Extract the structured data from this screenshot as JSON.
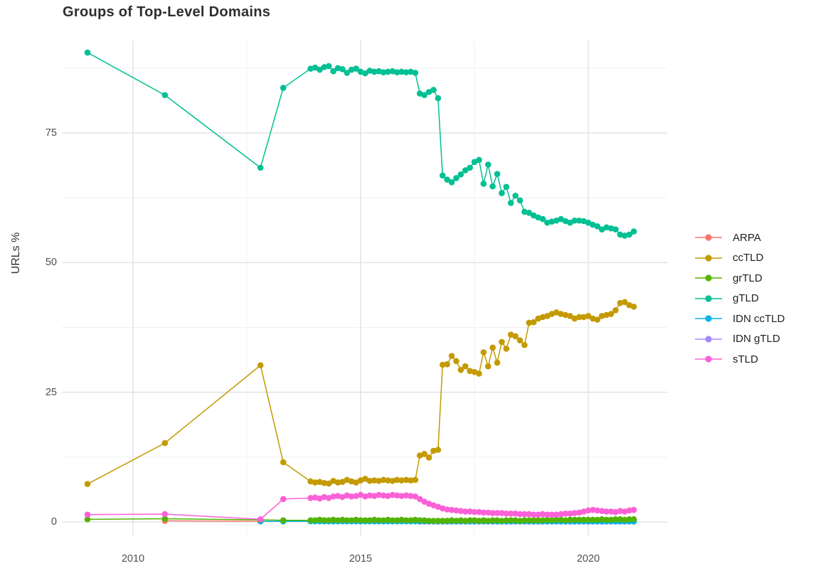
{
  "chart_data": {
    "type": "line",
    "title": "Groups of Top-Level Domains",
    "xlabel": "",
    "ylabel": "URLs %",
    "x_tick_labels": [
      "2010",
      "2015",
      "2020"
    ],
    "x_ticks": [
      2010,
      2015,
      2020
    ],
    "x_minor_ticks": [
      2012.5,
      2017.5
    ],
    "y_tick_labels": [
      "0",
      "25",
      "50",
      "75"
    ],
    "y_ticks": [
      0,
      25,
      50,
      75
    ],
    "y_minor_ticks": [
      12.5,
      37.5,
      62.5,
      87.5
    ],
    "x_range": [
      2008.4,
      2021.8
    ],
    "y_range": [
      -2.9,
      92.5
    ],
    "grid": "major+minor",
    "legend_position": "right",
    "series": [
      {
        "name": "ARPA",
        "color": "#F8766D",
        "x": [
          2010.7,
          2012.8
        ],
        "y": [
          0.2,
          0.1
        ]
      },
      {
        "name": "ccTLD",
        "color": "#C49A00",
        "x": [
          2009,
          2010.7,
          2012.8,
          2013.3,
          2013.9,
          2014.0,
          2014.1,
          2014.2,
          2014.3,
          2014.4,
          2014.5,
          2014.6,
          2014.7,
          2014.8,
          2014.9,
          2015.0,
          2015.1,
          2015.2,
          2015.3,
          2015.4,
          2015.5,
          2015.6,
          2015.7,
          2015.8,
          2015.9,
          2016.0,
          2016.1,
          2016.2,
          2016.3,
          2016.4,
          2016.5,
          2016.6,
          2016.7,
          2016.8,
          2016.9,
          2017.0,
          2017.1,
          2017.2,
          2017.3,
          2017.4,
          2017.5,
          2017.6,
          2017.7,
          2017.8,
          2017.9,
          2018.0,
          2018.1,
          2018.2,
          2018.3,
          2018.4,
          2018.5,
          2018.6,
          2018.7,
          2018.8,
          2018.9,
          2019.0,
          2019.1,
          2019.2,
          2019.3,
          2019.4,
          2019.5,
          2019.6,
          2019.7,
          2019.8,
          2019.9,
          2020.0,
          2020.1,
          2020.2,
          2020.3,
          2020.4,
          2020.5,
          2020.6,
          2020.7,
          2020.8,
          2020.9,
          2021.0
        ],
        "y": [
          7.3,
          15.2,
          30.2,
          11.5,
          7.8,
          7.6,
          7.7,
          7.5,
          7.4,
          7.9,
          7.6,
          7.7,
          8.1,
          7.8,
          7.6,
          8.0,
          8.3,
          7.9,
          8.0,
          7.9,
          8.1,
          8.0,
          7.9,
          8.1,
          8.0,
          8.1,
          8.0,
          8.1,
          12.8,
          13.1,
          12.4,
          13.7,
          13.9,
          30.3,
          30.4,
          32.0,
          31.0,
          29.3,
          30.0,
          29.1,
          28.9,
          28.6,
          32.7,
          30.0,
          33.6,
          30.7,
          34.7,
          33.4,
          36.1,
          35.8,
          35.0,
          34.1,
          38.4,
          38.5,
          39.2,
          39.5,
          39.7,
          40.1,
          40.4,
          40.1,
          39.9,
          39.7,
          39.2,
          39.5,
          39.5,
          39.7,
          39.2,
          39.0,
          39.7,
          39.9,
          40.1,
          40.8,
          42.2,
          42.4,
          41.8,
          41.5
        ]
      },
      {
        "name": "grTLD",
        "color": "#53B400",
        "x": [
          2009,
          2010.7,
          2012.8,
          2013.3,
          2013.9,
          2014.0,
          2014.1,
          2014.2,
          2014.3,
          2014.4,
          2014.5,
          2014.6,
          2014.7,
          2014.8,
          2014.9,
          2015.0,
          2015.1,
          2015.2,
          2015.3,
          2015.4,
          2015.5,
          2015.6,
          2015.7,
          2015.8,
          2015.9,
          2016.0,
          2016.1,
          2016.2,
          2016.3,
          2016.4,
          2016.5,
          2016.6,
          2016.7,
          2016.8,
          2016.9,
          2017.0,
          2017.1,
          2017.2,
          2017.3,
          2017.4,
          2017.5,
          2017.6,
          2017.7,
          2017.8,
          2017.9,
          2018.0,
          2018.1,
          2018.2,
          2018.3,
          2018.4,
          2018.5,
          2018.6,
          2018.7,
          2018.8,
          2018.9,
          2019.0,
          2019.1,
          2019.2,
          2019.3,
          2019.4,
          2019.5,
          2019.6,
          2019.7,
          2019.8,
          2019.9,
          2020.0,
          2020.1,
          2020.2,
          2020.3,
          2020.4,
          2020.5,
          2020.6,
          2020.7,
          2020.8,
          2020.9,
          2021.0
        ],
        "y": [
          0.5,
          0.6,
          0.4,
          0.3,
          0.3,
          0.3,
          0.4,
          0.3,
          0.3,
          0.4,
          0.3,
          0.4,
          0.3,
          0.3,
          0.4,
          0.3,
          0.3,
          0.3,
          0.4,
          0.3,
          0.3,
          0.4,
          0.3,
          0.3,
          0.4,
          0.3,
          0.3,
          0.4,
          0.3,
          0.3,
          0.2,
          0.2,
          0.2,
          0.2,
          0.2,
          0.3,
          0.2,
          0.3,
          0.2,
          0.3,
          0.3,
          0.2,
          0.3,
          0.2,
          0.3,
          0.3,
          0.2,
          0.3,
          0.3,
          0.3,
          0.2,
          0.3,
          0.3,
          0.3,
          0.3,
          0.3,
          0.4,
          0.3,
          0.4,
          0.4,
          0.3,
          0.4,
          0.4,
          0.4,
          0.4,
          0.4,
          0.4,
          0.4,
          0.5,
          0.4,
          0.4,
          0.5,
          0.5,
          0.4,
          0.5,
          0.5
        ]
      },
      {
        "name": "gTLD",
        "color": "#00C094",
        "x": [
          2009,
          2010.7,
          2012.8,
          2013.3,
          2013.9,
          2014.0,
          2014.1,
          2014.2,
          2014.3,
          2014.4,
          2014.5,
          2014.6,
          2014.7,
          2014.8,
          2014.9,
          2015.0,
          2015.1,
          2015.2,
          2015.3,
          2015.4,
          2015.5,
          2015.6,
          2015.7,
          2015.8,
          2015.9,
          2016.0,
          2016.1,
          2016.2,
          2016.3,
          2016.4,
          2016.5,
          2016.6,
          2016.7,
          2016.8,
          2016.9,
          2017.0,
          2017.1,
          2017.2,
          2017.3,
          2017.4,
          2017.5,
          2017.6,
          2017.7,
          2017.8,
          2017.9,
          2018.0,
          2018.1,
          2018.2,
          2018.3,
          2018.4,
          2018.5,
          2018.6,
          2018.7,
          2018.8,
          2018.9,
          2019.0,
          2019.1,
          2019.2,
          2019.3,
          2019.4,
          2019.5,
          2019.6,
          2019.7,
          2019.8,
          2019.9,
          2020.0,
          2020.1,
          2020.2,
          2020.3,
          2020.4,
          2020.5,
          2020.6,
          2020.7,
          2020.8,
          2020.9,
          2021.0
        ],
        "y": [
          90.5,
          82.3,
          68.3,
          83.7,
          87.4,
          87.6,
          87.2,
          87.7,
          87.9,
          86.9,
          87.5,
          87.3,
          86.6,
          87.2,
          87.4,
          86.8,
          86.5,
          87.0,
          86.8,
          86.9,
          86.7,
          86.8,
          86.9,
          86.7,
          86.8,
          86.7,
          86.8,
          86.6,
          82.6,
          82.3,
          82.9,
          83.3,
          81.7,
          66.8,
          66.0,
          65.5,
          66.3,
          67.0,
          67.8,
          68.3,
          69.4,
          69.8,
          65.2,
          68.9,
          64.7,
          67.1,
          63.4,
          64.6,
          61.5,
          62.9,
          62.0,
          59.8,
          59.6,
          59.1,
          58.7,
          58.4,
          57.7,
          57.9,
          58.1,
          58.4,
          58.0,
          57.7,
          58.1,
          58.1,
          58.0,
          57.7,
          57.3,
          57.0,
          56.4,
          56.8,
          56.6,
          56.4,
          55.4,
          55.2,
          55.4,
          56.0
        ]
      },
      {
        "name": "IDN ccTLD",
        "color": "#00B6EB",
        "x": [
          2012.8,
          2013.3,
          2013.9,
          2014.0,
          2014.1,
          2014.2,
          2014.3,
          2014.4,
          2014.5,
          2014.6,
          2014.7,
          2014.8,
          2014.9,
          2015.0,
          2015.1,
          2015.2,
          2015.3,
          2015.4,
          2015.5,
          2015.6,
          2015.7,
          2015.8,
          2015.9,
          2016.0,
          2016.1,
          2016.2,
          2016.3,
          2016.4,
          2016.5,
          2016.6,
          2016.7,
          2016.8,
          2016.9,
          2017.0,
          2017.1,
          2017.2,
          2017.3,
          2017.4,
          2017.5,
          2017.6,
          2017.7,
          2017.8,
          2017.9,
          2018.0,
          2018.1,
          2018.2,
          2018.3,
          2018.4,
          2018.5,
          2018.6,
          2018.7,
          2018.8,
          2018.9,
          2019.0,
          2019.1,
          2019.2,
          2019.3,
          2019.4,
          2019.5,
          2019.6,
          2019.7,
          2019.8,
          2019.9,
          2020.0,
          2020.1,
          2020.2,
          2020.3,
          2020.4,
          2020.5,
          2020.6,
          2020.7,
          2020.8,
          2020.9,
          2021.0
        ],
        "y": [
          0.1,
          0.1,
          0.1,
          0.1,
          0.1,
          0.1,
          0.1,
          0.1,
          0.1,
          0.1,
          0.1,
          0.1,
          0.1,
          0.1,
          0.1,
          0.1,
          0.1,
          0.1,
          0.1,
          0.1,
          0.1,
          0.1,
          0.1,
          0.1,
          0.1,
          0.1,
          0.1,
          0.1,
          0.1,
          0.1,
          0.1,
          0.1,
          0.1,
          0.1,
          0.1,
          0.1,
          0.1,
          0.1,
          0.1,
          0.1,
          0.1,
          0.1,
          0.1,
          0.1,
          0.1,
          0.1,
          0.1,
          0.1,
          0.1,
          0.1,
          0.1,
          0.1,
          0.1,
          0.1,
          0.1,
          0.1,
          0.1,
          0.1,
          0.1,
          0.1,
          0.1,
          0.1,
          0.1,
          0.1,
          0.1,
          0.1,
          0.1,
          0.1,
          0.1,
          0.1,
          0.1,
          0.1,
          0.1,
          0.1
        ]
      },
      {
        "name": "IDN gTLD",
        "color": "#A58AFF",
        "x": [
          2016.3,
          2016.4,
          2016.5,
          2016.6,
          2016.7,
          2016.8,
          2016.9,
          2017.0,
          2017.1,
          2017.2,
          2017.3,
          2017.4,
          2017.5,
          2017.6,
          2017.7,
          2017.8,
          2017.9,
          2018.0,
          2018.1,
          2018.2,
          2018.3,
          2018.4,
          2018.5,
          2018.6,
          2018.7,
          2018.8,
          2018.9,
          2019.0,
          2019.1,
          2019.2,
          2019.3,
          2019.4,
          2019.5,
          2019.6,
          2019.7,
          2019.8,
          2019.9,
          2020.0,
          2020.1,
          2020.2,
          2020.3,
          2020.4,
          2020.5,
          2020.6,
          2020.7,
          2020.8,
          2020.9,
          2021.0
        ],
        "y": [
          0.05,
          0.05,
          0.05,
          0.05,
          0.05,
          0.05,
          0.05,
          0.05,
          0.05,
          0.05,
          0.05,
          0.05,
          0.05,
          0.05,
          0.05,
          0.05,
          0.05,
          0.05,
          0.05,
          0.05,
          0.05,
          0.05,
          0.05,
          0.05,
          0.05,
          0.05,
          0.05,
          0.05,
          0.05,
          0.05,
          0.05,
          0.05,
          0.05,
          0.05,
          0.05,
          0.05,
          0.05,
          0.05,
          0.05,
          0.05,
          0.05,
          0.05,
          0.05,
          0.05,
          0.05,
          0.05,
          0.05,
          0.05
        ]
      },
      {
        "name": "sTLD",
        "color": "#FB61D7",
        "x": [
          2009,
          2010.7,
          2012.8,
          2013.3,
          2013.9,
          2014.0,
          2014.1,
          2014.2,
          2014.3,
          2014.4,
          2014.5,
          2014.6,
          2014.7,
          2014.8,
          2014.9,
          2015.0,
          2015.1,
          2015.2,
          2015.3,
          2015.4,
          2015.5,
          2015.6,
          2015.7,
          2015.8,
          2015.9,
          2016.0,
          2016.1,
          2016.2,
          2016.3,
          2016.4,
          2016.5,
          2016.6,
          2016.7,
          2016.8,
          2016.9,
          2017.0,
          2017.1,
          2017.2,
          2017.3,
          2017.4,
          2017.5,
          2017.6,
          2017.7,
          2017.8,
          2017.9,
          2018.0,
          2018.1,
          2018.2,
          2018.3,
          2018.4,
          2018.5,
          2018.6,
          2018.7,
          2018.8,
          2018.9,
          2019.0,
          2019.1,
          2019.2,
          2019.3,
          2019.4,
          2019.5,
          2019.6,
          2019.7,
          2019.8,
          2019.9,
          2020.0,
          2020.1,
          2020.2,
          2020.3,
          2020.4,
          2020.5,
          2020.6,
          2020.7,
          2020.8,
          2020.9,
          2021.0
        ],
        "y": [
          1.4,
          1.5,
          0.5,
          4.4,
          4.6,
          4.7,
          4.5,
          4.8,
          4.6,
          4.9,
          5.0,
          4.8,
          5.1,
          4.9,
          5.0,
          5.2,
          4.9,
          5.1,
          5.0,
          5.2,
          5.1,
          5.0,
          5.2,
          5.1,
          5.0,
          5.1,
          5.0,
          4.9,
          4.4,
          3.9,
          3.5,
          3.2,
          2.9,
          2.6,
          2.4,
          2.3,
          2.2,
          2.1,
          2.0,
          2.0,
          1.9,
          1.9,
          1.8,
          1.8,
          1.7,
          1.7,
          1.7,
          1.6,
          1.6,
          1.6,
          1.5,
          1.5,
          1.5,
          1.4,
          1.4,
          1.5,
          1.4,
          1.4,
          1.4,
          1.5,
          1.6,
          1.6,
          1.7,
          1.8,
          2.0,
          2.2,
          2.3,
          2.2,
          2.1,
          2.0,
          2.0,
          1.9,
          2.1,
          2.0,
          2.2,
          2.3
        ]
      }
    ],
    "legend": {
      "items": [
        {
          "label": "ARPA",
          "color": "#F8766D"
        },
        {
          "label": "ccTLD",
          "color": "#C49A00"
        },
        {
          "label": "grTLD",
          "color": "#53B400"
        },
        {
          "label": "gTLD",
          "color": "#00C094"
        },
        {
          "label": "IDN ccTLD",
          "color": "#00B6EB"
        },
        {
          "label": "IDN gTLD",
          "color": "#A58AFF"
        },
        {
          "label": "sTLD",
          "color": "#FB61D7"
        }
      ]
    },
    "style": {
      "background": "#ffffff",
      "grid_major_color": "#e4e4e4",
      "grid_minor_color": "#f1f1f1",
      "tick_label_color": "#4f4f4f",
      "title_color": "#2e2e2e"
    }
  }
}
